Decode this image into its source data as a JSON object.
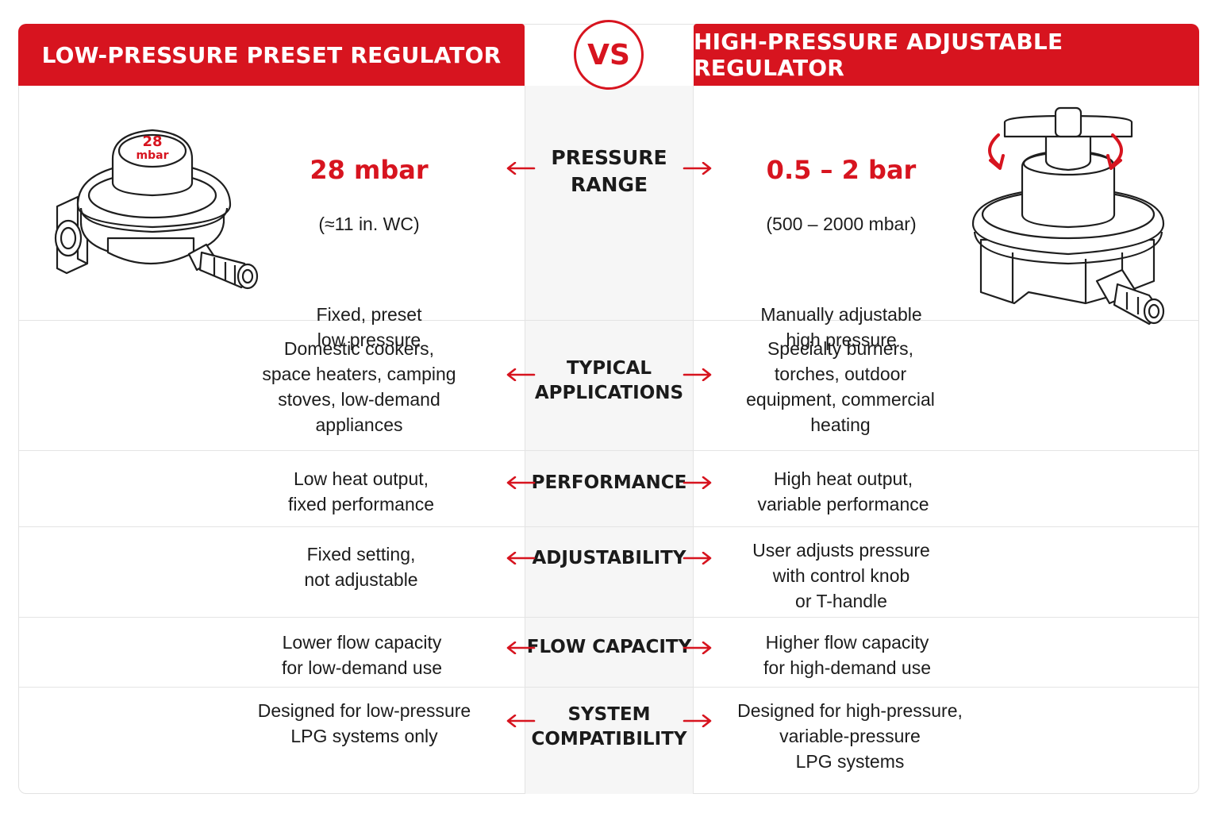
{
  "header": {
    "left_title": "LOW-PRESSURE PRESET REGULATOR",
    "right_title": "HIGH-PRESSURE ADJUSTABLE REGULATOR",
    "vs": "VS"
  },
  "illustrations": {
    "left_dial_value": "28",
    "left_dial_unit": "mbar"
  },
  "pressure_range": {
    "label": "PRESSURE\nRANGE",
    "left_value": "28 mbar",
    "left_equiv": "(≈11 in. WC)",
    "left_desc": "Fixed, preset\nlow pressure",
    "right_value": "0.5 – 2 bar",
    "right_equiv": "(500 – 2000 mbar)",
    "right_desc": "Manually adjustable\nhigh pressure"
  },
  "rows": [
    {
      "label": "TYPICAL\nAPPLICATIONS",
      "left": "Domestic cookers,\nspace heaters, camping\nstoves, low-demand\nappliances",
      "right": "Specialty burners,\ntorches, outdoor\nequipment, commercial\nheating"
    },
    {
      "label": "PERFORMANCE",
      "left": "Low heat output,\nfixed performance",
      "right": "High heat output,\nvariable performance"
    },
    {
      "label": "ADJUSTABILITY",
      "left": "Fixed setting,\nnot adjustable",
      "right": "User adjusts pressure\nwith control knob\nor T-handle"
    },
    {
      "label": "FLOW CAPACITY",
      "left": "Lower flow capacity\nfor low-demand use",
      "right": "Higher flow capacity\nfor high-demand use"
    },
    {
      "label": "SYSTEM\nCOMPATIBILITY",
      "left": "Designed for low-pressure\nLPG systems only",
      "right": "Designed for high-pressure,\nvariable-pressure\nLPG systems"
    }
  ],
  "colors": {
    "accent": "#d7141f",
    "center_band": "#f6f6f6",
    "divider": "#e4e4e4"
  },
  "icons": [
    "arrow-left-icon",
    "arrow-right-icon",
    "rotate-arrows-icon"
  ]
}
